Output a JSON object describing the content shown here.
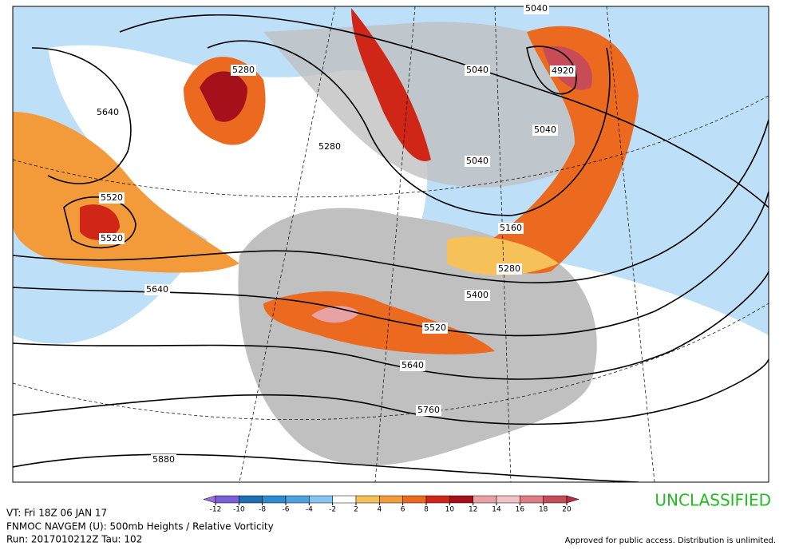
{
  "map": {
    "contour_labels": [
      "5640",
      "5520",
      "5520",
      "5640",
      "5280",
      "5280",
      "5040",
      "5040",
      "4920",
      "5040",
      "5040",
      "5160",
      "5280",
      "5400",
      "5520",
      "5640",
      "5760",
      "5880"
    ],
    "colorbar": {
      "ticks": [
        -12,
        -10,
        -8,
        -6,
        -4,
        -2,
        2,
        4,
        6,
        8,
        10,
        12,
        14,
        16,
        18,
        20
      ],
      "colors": [
        "#9a6fe0",
        "#7a5fd8",
        "#1f6fb4",
        "#2f8bd0",
        "#4aa3e0",
        "#86c5f0",
        "#ffffff",
        "#f7c15a",
        "#f39a3a",
        "#ec6a20",
        "#cf2618",
        "#a5101a",
        "#e8a2a6",
        "#f0c2c4",
        "#e07c84",
        "#c84c58",
        "#b83040"
      ]
    },
    "footer": {
      "valid_time": "VT: Fri 18Z 06 JAN 17",
      "model": "FNMOC NAVGEM (U): 500mb Heights / Relative Vorticity",
      "run": "Run: 2017010212Z Tau: 102",
      "classification": "UNCLASSIFIED",
      "release": "Approved for public access. Distribution is unlimited."
    }
  }
}
